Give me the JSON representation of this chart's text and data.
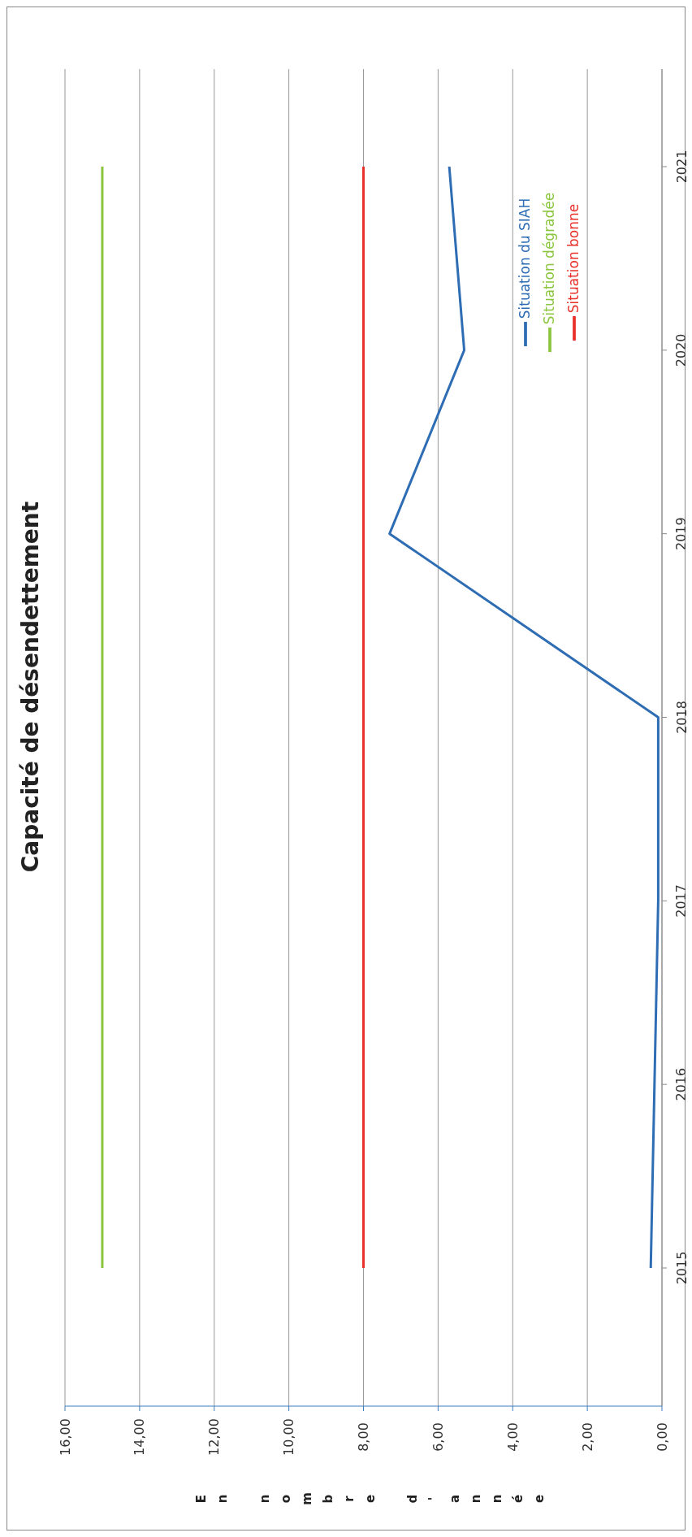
{
  "chart_data": {
    "type": "line",
    "orientation": "horizontal",
    "title": "Capacité de désendettement",
    "xlabel": "En nombre d'année",
    "categories": [
      "2021",
      "2020",
      "2019",
      "2018",
      "2017",
      "2016",
      "2015"
    ],
    "series": [
      {
        "name": "Situation du SIAH",
        "color": "#2e6db4",
        "values": [
          5.7,
          5.3,
          7.3,
          0.1,
          0.1,
          0.2,
          0.3
        ]
      },
      {
        "name": "Situation dégradée",
        "color": "#8cc63f",
        "values": [
          15,
          15,
          15,
          15,
          15,
          15,
          15
        ]
      },
      {
        "name": "Situation bonne",
        "color": "#e8312a",
        "values": [
          8,
          8,
          8,
          8,
          8,
          8,
          8
        ]
      }
    ],
    "xlim": [
      16,
      0
    ],
    "xticks": [
      {
        "value": 16,
        "label": "16,00"
      },
      {
        "value": 14,
        "label": "14,00"
      },
      {
        "value": 12,
        "label": "12,00"
      },
      {
        "value": 10,
        "label": "10,00"
      },
      {
        "value": 8,
        "label": "8,00"
      },
      {
        "value": 6,
        "label": "6,00"
      },
      {
        "value": 4,
        "label": "4,00"
      },
      {
        "value": 2,
        "label": "2,00"
      },
      {
        "value": 0,
        "label": "0,00"
      }
    ],
    "grid": "x",
    "legend": "top right",
    "marker": "none",
    "line_style": "solid"
  }
}
